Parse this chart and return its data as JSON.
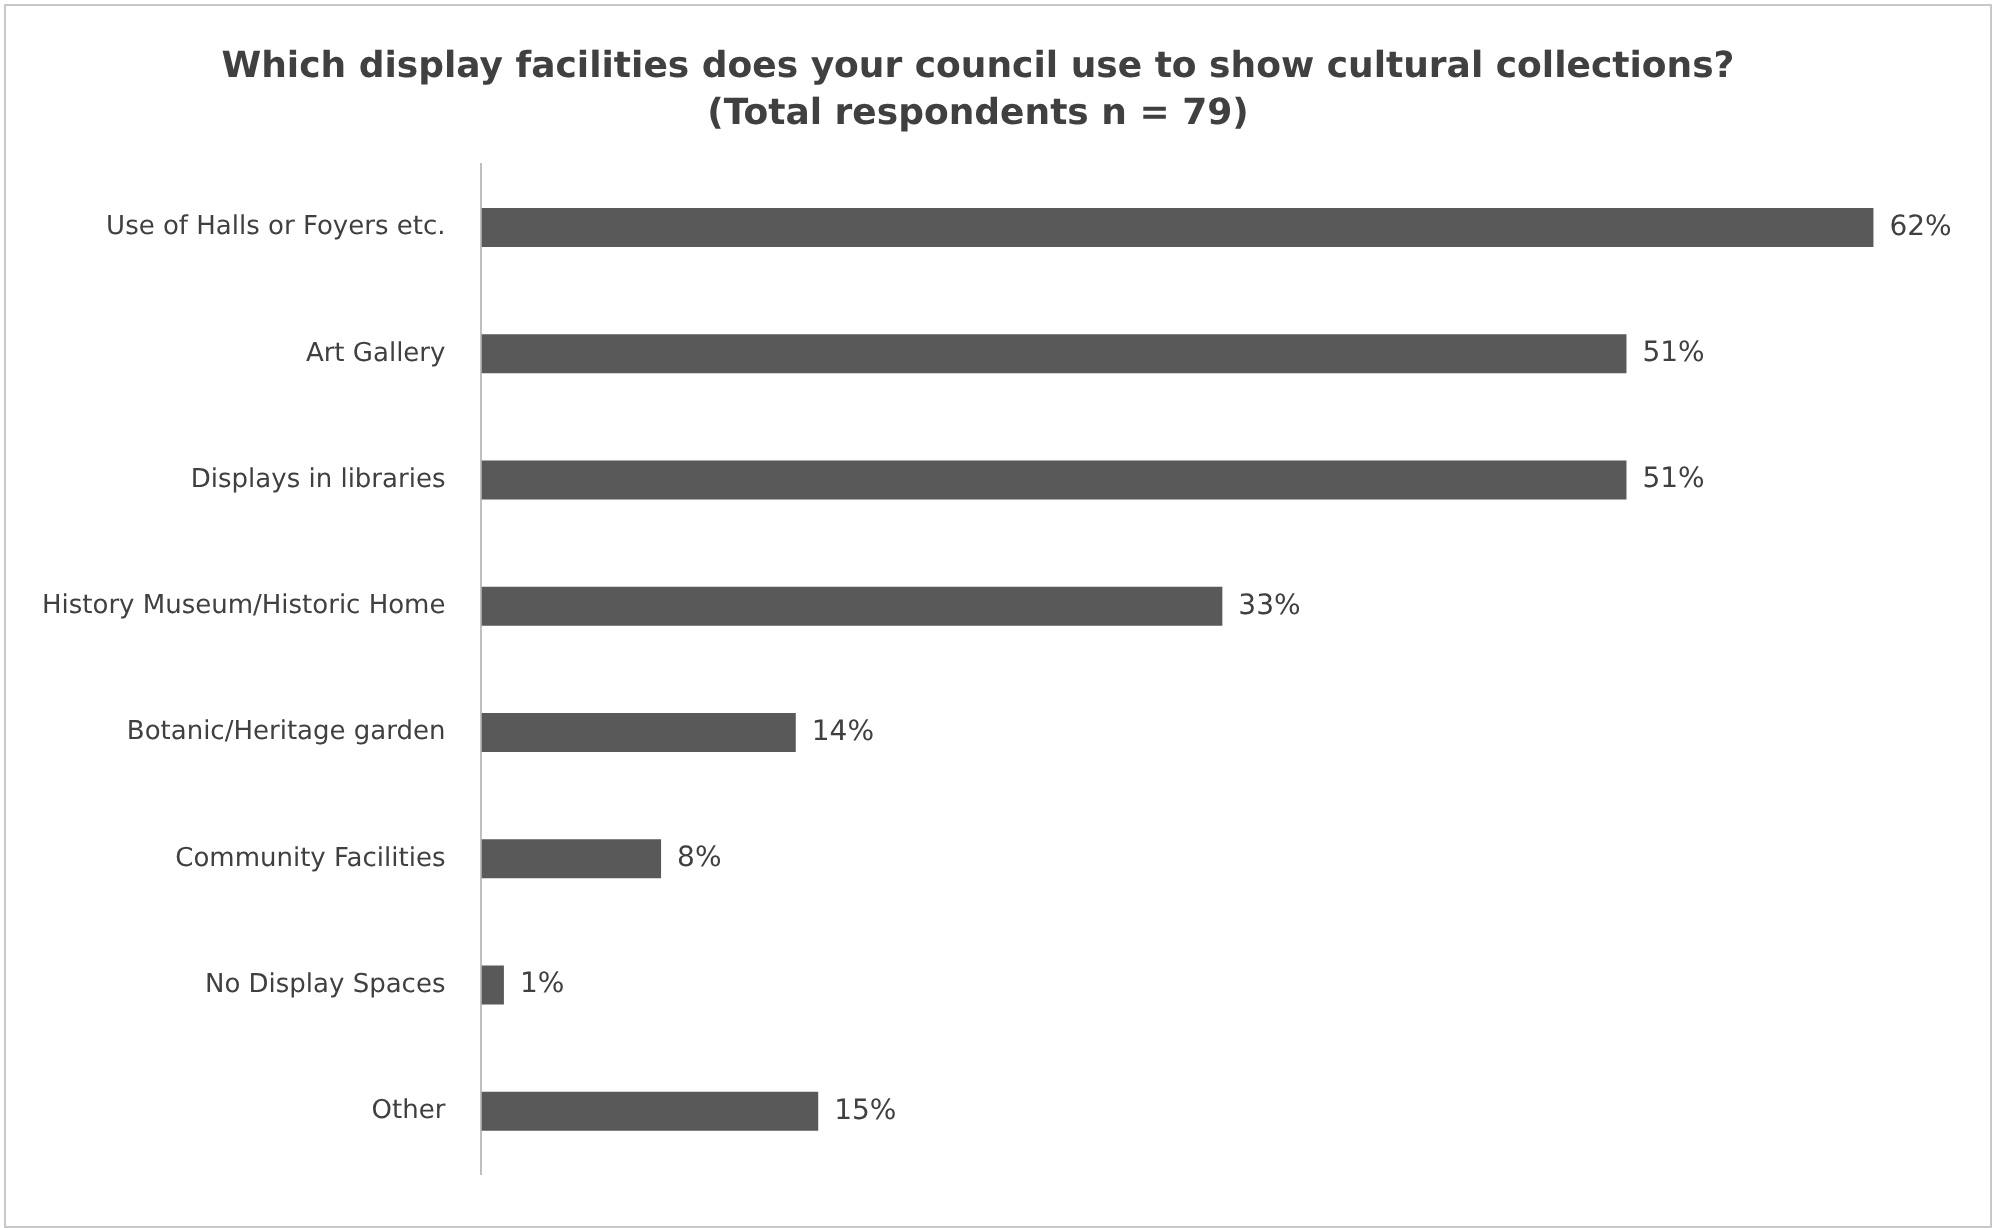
{
  "chart_data": {
    "type": "bar",
    "orientation": "horizontal",
    "title": "Which display facilities does your council use to show cultural collections?",
    "subtitle": "(Total respondents n = 79)",
    "categories": [
      "Use of Halls or Foyers etc.",
      "Art Gallery",
      "Displays in libraries",
      "History Museum/Historic Home",
      "Botanic/Heritage garden",
      "Community Facilities",
      "No Display Spaces",
      "Other"
    ],
    "values": [
      62,
      51,
      51,
      33,
      14,
      8,
      1,
      15
    ],
    "value_labels": [
      "62%",
      "51%",
      "51%",
      "33%",
      "14%",
      "8%",
      "1%",
      "15%"
    ],
    "color": "#595959"
  }
}
